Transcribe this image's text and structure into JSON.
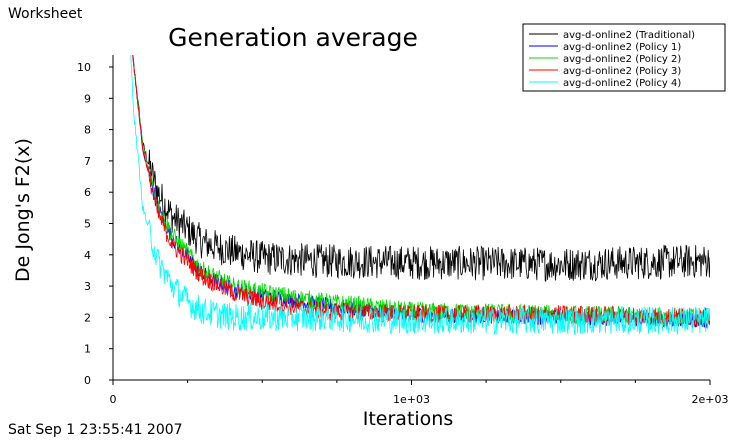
{
  "header": {
    "label": "Worksheet"
  },
  "footer": {
    "timestamp": "Sat Sep 1 23:55:41 2007"
  },
  "chart_data": {
    "type": "line",
    "title": "Generation average",
    "xlabel": "Iterations",
    "ylabel": "De Jong's F2(x)",
    "xlim": [
      0,
      2000
    ],
    "ylim": [
      0,
      10
    ],
    "xticks": [
      "0",
      "1e+03",
      "2e+03"
    ],
    "yticks": [
      "0",
      "1",
      "2",
      "3",
      "4",
      "5",
      "6",
      "7",
      "8",
      "9",
      "10"
    ],
    "legend_position": "top-right",
    "noise_seed": 12345,
    "series": [
      {
        "name": "avg-d-online2 (Traditional)",
        "color": "#000000",
        "x": [
          50,
          70,
          100,
          150,
          200,
          300,
          400,
          500,
          700,
          1000,
          1500,
          2000
        ],
        "y": [
          12,
          10,
          7.5,
          6,
          5.2,
          4.4,
          4.1,
          3.9,
          3.8,
          3.75,
          3.7,
          3.8
        ],
        "noise": 0.55
      },
      {
        "name": "avg-d-online2 (Policy 1)",
        "color": "#0000ff",
        "x": [
          50,
          70,
          100,
          150,
          200,
          300,
          400,
          500,
          700,
          1000,
          1500,
          2000
        ],
        "y": [
          12,
          10,
          7.3,
          5.5,
          4.5,
          3.4,
          2.9,
          2.7,
          2.4,
          2.1,
          2.0,
          1.9
        ],
        "noise": 0.25
      },
      {
        "name": "avg-d-online2 (Policy 2)",
        "color": "#00dd00",
        "x": [
          50,
          70,
          100,
          150,
          200,
          300,
          400,
          500,
          700,
          1000,
          1500,
          2000
        ],
        "y": [
          12,
          10,
          7.5,
          5.6,
          4.6,
          3.5,
          3.0,
          2.8,
          2.5,
          2.2,
          2.1,
          2.0
        ],
        "noise": 0.3
      },
      {
        "name": "avg-d-online2 (Policy 3)",
        "color": "#ff0000",
        "x": [
          50,
          70,
          100,
          150,
          200,
          300,
          400,
          500,
          700,
          1000,
          1500,
          2000
        ],
        "y": [
          12,
          10,
          7.4,
          5.3,
          4.3,
          3.3,
          2.8,
          2.5,
          2.2,
          2.1,
          2.1,
          2.0
        ],
        "noise": 0.3
      },
      {
        "name": "avg-d-online2 (Policy 4)",
        "color": "#00ffff",
        "x": [
          50,
          70,
          100,
          150,
          200,
          250,
          300,
          400,
          500,
          700,
          1000,
          1500,
          2000
        ],
        "y": [
          12,
          8.5,
          5.5,
          3.8,
          3.0,
          2.5,
          2.2,
          2.0,
          2.0,
          2.0,
          1.9,
          1.9,
          1.9
        ],
        "noise": 0.45
      }
    ]
  }
}
